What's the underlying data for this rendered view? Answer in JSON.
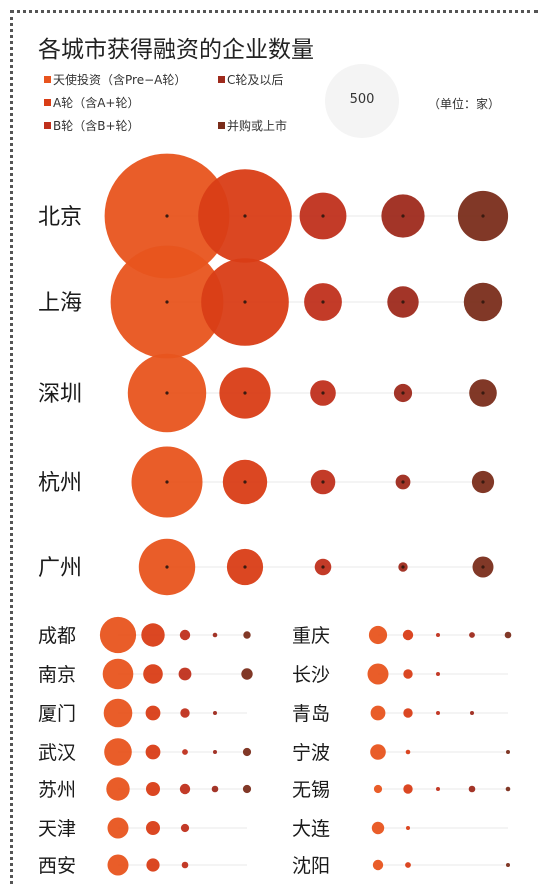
{
  "title": "各城市获得融资的企业数量",
  "legend": {
    "items": [
      {
        "label": "天使投资（含Pre−A轮）",
        "color": "#e8541e"
      },
      {
        "label": "A轮（含A+轮）",
        "color": "#d93d16"
      },
      {
        "label": "B轮（含B+轮）",
        "color": "#c0301c"
      },
      {
        "label": "C轮及以后",
        "color": "#9e2a1c"
      },
      {
        "label": "并购或上市",
        "color": "#7a2d1b"
      }
    ],
    "size_reference_value": "500",
    "unit": "（单位：家）"
  },
  "colors": {
    "angel": "#e8541e",
    "a": "#d93d16",
    "b": "#c0301c",
    "c": "#9e2a1c",
    "ma": "#7a2d1b"
  },
  "chart_data": {
    "type": "bubble",
    "title": "各城市获得融资的企业数量",
    "unit": "家",
    "size_reference": 500,
    "series_names": [
      "天使投资（含Pre−A轮）",
      "A轮（含A+轮）",
      "B轮（含B+轮）",
      "C轮及以后",
      "并购或上市"
    ],
    "major_cities": [
      {
        "city": "北京",
        "values": [
          1420,
          800,
          200,
          170,
          230
        ]
      },
      {
        "city": "上海",
        "values": [
          1160,
          700,
          130,
          90,
          135
        ]
      },
      {
        "city": "深圳",
        "values": [
          560,
          240,
          60,
          30,
          70
        ]
      },
      {
        "city": "杭州",
        "values": [
          460,
          180,
          55,
          20,
          45
        ]
      },
      {
        "city": "广州",
        "values": [
          290,
          120,
          25,
          8,
          40
        ]
      }
    ],
    "minor_cities_left": [
      {
        "city": "成都",
        "values": [
          120,
          50,
          10,
          2,
          5
        ]
      },
      {
        "city": "南京",
        "values": [
          85,
          35,
          15,
          0,
          12
        ]
      },
      {
        "city": "厦门",
        "values": [
          75,
          20,
          8,
          1,
          0
        ]
      },
      {
        "city": "武汉",
        "values": [
          70,
          20,
          3,
          1,
          6
        ]
      },
      {
        "city": "苏州",
        "values": [
          50,
          18,
          10,
          4,
          6
        ]
      },
      {
        "city": "天津",
        "values": [
          40,
          18,
          6,
          0,
          0
        ]
      },
      {
        "city": "西安",
        "values": [
          40,
          16,
          4,
          0,
          0
        ]
      }
    ],
    "minor_cities_right": [
      {
        "city": "重庆",
        "values": [
          30,
          10,
          1,
          3,
          4
        ]
      },
      {
        "city": "长沙",
        "values": [
          40,
          8,
          1,
          0,
          0
        ]
      },
      {
        "city": "青岛",
        "values": [
          20,
          8,
          1,
          1,
          0
        ]
      },
      {
        "city": "宁波",
        "values": [
          22,
          2,
          0,
          0,
          1
        ]
      },
      {
        "city": "无锡",
        "values": [
          6,
          8,
          1,
          4,
          2
        ]
      },
      {
        "city": "大连",
        "values": [
          14,
          1,
          0,
          0,
          0
        ]
      },
      {
        "city": "沈阳",
        "values": [
          10,
          3,
          0,
          0,
          1
        ]
      }
    ]
  }
}
